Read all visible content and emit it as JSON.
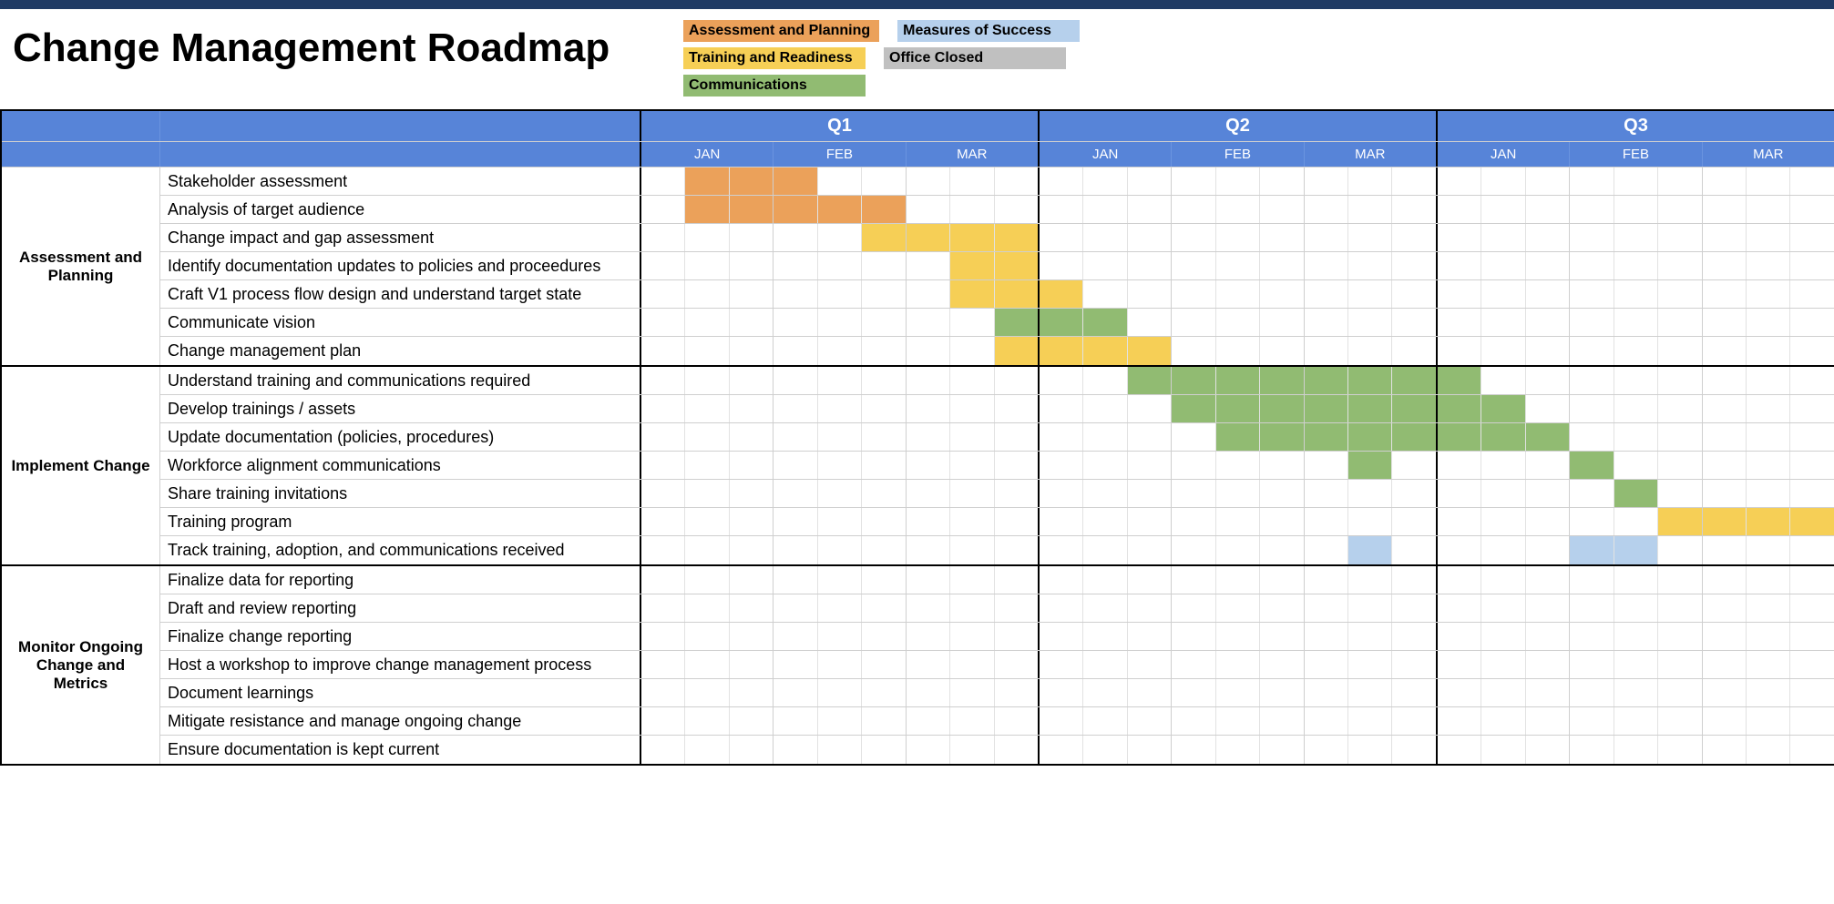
{
  "title": "Change Management Roadmap",
  "colors": {
    "header_blue": "#5784d8",
    "topbar": "#1f3a64",
    "grid_light": "#e2e2e2",
    "grid_med": "#cfcfcf",
    "border_heavy": "#000000",
    "assessment": "#eba15a",
    "training": "#f6cf56",
    "communications": "#91bb72",
    "measures": "#b6d0ec",
    "closed": "#c0c0c0",
    "text": "#000000"
  },
  "legend": [
    [
      {
        "label": "Assessment and Planning",
        "color": "assessment"
      },
      {
        "label": "Measures of Success",
        "color": "measures"
      }
    ],
    [
      {
        "label": "Training and Readiness",
        "color": "training"
      },
      {
        "label": "Office Closed",
        "color": "closed"
      }
    ],
    [
      {
        "label": "Communications",
        "color": "communications"
      }
    ]
  ],
  "quarters": [
    "Q1",
    "Q2",
    "Q3"
  ],
  "months_per_quarter": [
    "JAN",
    "FEB",
    "MAR"
  ],
  "weeks_per_month": 3,
  "sections": [
    {
      "name": "Assessment and Planning",
      "tasks": [
        {
          "label": "Stakeholder assessment",
          "bars": [
            {
              "start": 1,
              "end": 3,
              "color": "assessment"
            }
          ]
        },
        {
          "label": "Analysis of target audience",
          "bars": [
            {
              "start": 1,
              "end": 5,
              "color": "assessment"
            }
          ]
        },
        {
          "label": "Change impact and gap assessment",
          "bars": [
            {
              "start": 5,
              "end": 8,
              "color": "training"
            }
          ]
        },
        {
          "label": "Identify documentation updates to policies and proceedures",
          "bars": [
            {
              "start": 7,
              "end": 8,
              "color": "training"
            }
          ]
        },
        {
          "label": "Craft V1 process flow design and understand target state",
          "bars": [
            {
              "start": 7,
              "end": 9,
              "color": "training"
            }
          ]
        },
        {
          "label": "Communicate vision",
          "bars": [
            {
              "start": 8,
              "end": 10,
              "color": "communications"
            }
          ]
        },
        {
          "label": "Change management plan",
          "bars": [
            {
              "start": 8,
              "end": 11,
              "color": "training"
            }
          ]
        }
      ]
    },
    {
      "name": "Implement Change",
      "tasks": [
        {
          "label": "Understand training and communications required",
          "bars": [
            {
              "start": 11,
              "end": 18,
              "color": "communications"
            }
          ]
        },
        {
          "label": "Develop trainings / assets",
          "bars": [
            {
              "start": 12,
              "end": 19,
              "color": "communications"
            }
          ]
        },
        {
          "label": "Update documentation (policies, procedures)",
          "bars": [
            {
              "start": 13,
              "end": 20,
              "color": "communications"
            }
          ]
        },
        {
          "label": "Workforce alignment communications",
          "bars": [
            {
              "start": 16,
              "end": 16,
              "color": "communications"
            },
            {
              "start": 21,
              "end": 21,
              "color": "communications"
            }
          ]
        },
        {
          "label": "Share training invitations",
          "bars": [
            {
              "start": 22,
              "end": 22,
              "color": "communications"
            }
          ]
        },
        {
          "label": "Training program",
          "bars": [
            {
              "start": 23,
              "end": 26,
              "color": "training"
            }
          ]
        },
        {
          "label": "Track training, adoption, and communications received",
          "bars": [
            {
              "start": 16,
              "end": 16,
              "color": "measures"
            },
            {
              "start": 21,
              "end": 22,
              "color": "measures"
            }
          ]
        }
      ]
    },
    {
      "name": "Monitor Ongoing Change and Metrics",
      "tasks": [
        {
          "label": "Finalize data for reporting",
          "bars": []
        },
        {
          "label": "Draft and review reporting",
          "bars": []
        },
        {
          "label": "Finalize change reporting",
          "bars": []
        },
        {
          "label": "Host a workshop to improve change management process",
          "bars": []
        },
        {
          "label": "Document learnings",
          "bars": []
        },
        {
          "label": "Mitigate resistance and manage ongoing change",
          "bars": []
        },
        {
          "label": "Ensure documentation is kept current",
          "bars": []
        }
      ]
    }
  ]
}
